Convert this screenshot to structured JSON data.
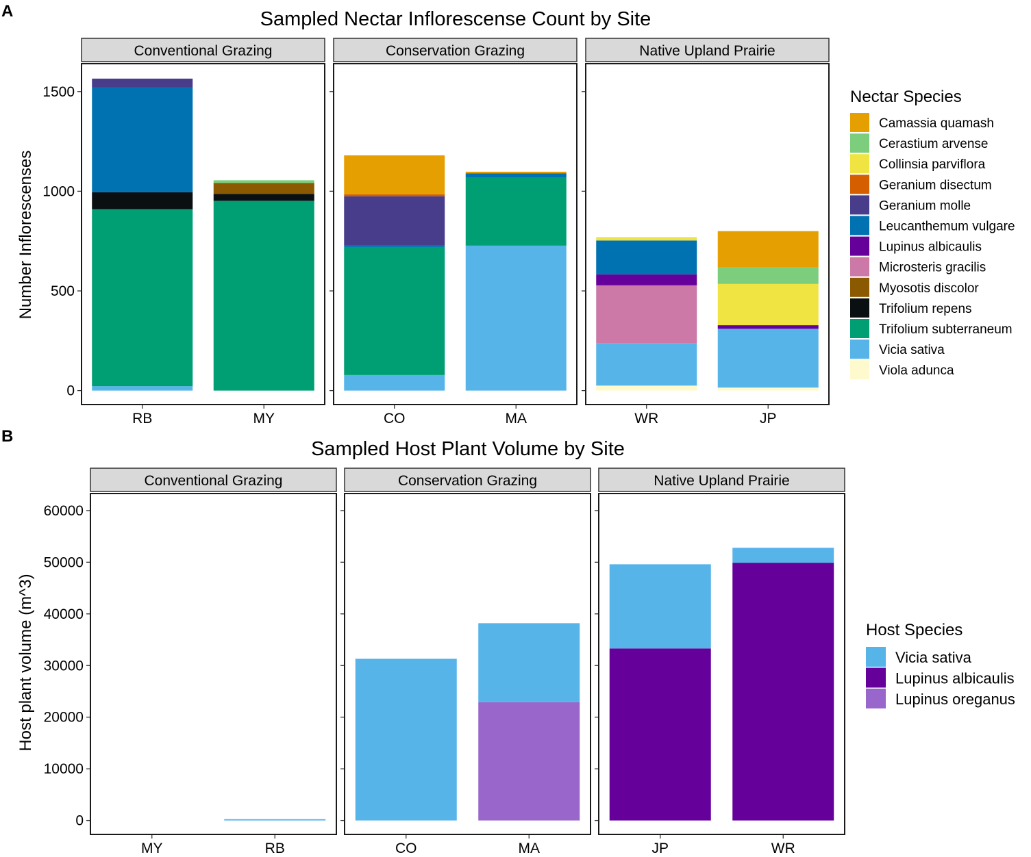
{
  "chart_data": [
    {
      "panel_label": "A",
      "type": "bar",
      "stacked": true,
      "title": "Sampled Nectar Inflorescense Count by Site",
      "xlabel": "",
      "ylabel": "Number Inflorescenses",
      "ylim": [
        -70,
        1640
      ],
      "yticks": [
        0,
        500,
        1000,
        1500
      ],
      "grid": false,
      "legend_position": "right",
      "legend_title": "Nectar Species",
      "species": [
        {
          "name": "Camassia quamash",
          "color": "#E69F00"
        },
        {
          "name": "Cerastium arvense",
          "color": "#7CCD7C"
        },
        {
          "name": "Collinsia parviflora",
          "color": "#F0E442"
        },
        {
          "name": "Geranium disectum",
          "color": "#D55E00"
        },
        {
          "name": "Geranium molle",
          "color": "#483D8B"
        },
        {
          "name": "Leucanthemum vulgare",
          "color": "#0072B2"
        },
        {
          "name": "Lupinus albicaulis",
          "color": "#66009A"
        },
        {
          "name": "Microsteris gracilis",
          "color": "#CC79A7"
        },
        {
          "name": "Myosotis discolor",
          "color": "#8B5A00"
        },
        {
          "name": "Trifolium repens",
          "color": "#0A0F12"
        },
        {
          "name": "Trifolium subterraneum",
          "color": "#009E73"
        },
        {
          "name": "Vicia sativa",
          "color": "#56B4E9"
        },
        {
          "name": "Viola adunca",
          "color": "#FFFACD"
        }
      ],
      "facets": [
        {
          "label": "Conventional Grazing",
          "sites": [
            {
              "site": "RB",
              "stack": [
                {
                  "species": "Vicia sativa",
                  "value": 22
                },
                {
                  "species": "Trifolium subterraneum",
                  "value": 888
                },
                {
                  "species": "Trifolium repens",
                  "value": 85
                },
                {
                  "species": "Leucanthemum vulgare",
                  "value": 525
                },
                {
                  "species": "Geranium molle",
                  "value": 45
                }
              ]
            },
            {
              "site": "MY",
              "stack": [
                {
                  "species": "Trifolium subterraneum",
                  "value": 952
                },
                {
                  "species": "Trifolium repens",
                  "value": 35
                },
                {
                  "species": "Myosotis discolor",
                  "value": 55
                },
                {
                  "species": "Cerastium arvense",
                  "value": 13
                }
              ]
            }
          ]
        },
        {
          "label": "Conservation Grazing",
          "sites": [
            {
              "site": "CO",
              "stack": [
                {
                  "species": "Vicia sativa",
                  "value": 78
                },
                {
                  "species": "Trifolium subterraneum",
                  "value": 642
                },
                {
                  "species": "Leucanthemum vulgare",
                  "value": 10
                },
                {
                  "species": "Geranium molle",
                  "value": 245
                },
                {
                  "species": "Geranium disectum",
                  "value": 10
                },
                {
                  "species": "Camassia quamash",
                  "value": 195
                }
              ]
            },
            {
              "site": "MA",
              "stack": [
                {
                  "species": "Vicia sativa",
                  "value": 727
                },
                {
                  "species": "Trifolium subterraneum",
                  "value": 343
                },
                {
                  "species": "Leucanthemum vulgare",
                  "value": 20
                },
                {
                  "species": "Camassia quamash",
                  "value": 8
                }
              ]
            }
          ]
        },
        {
          "label": "Native Upland Prairie",
          "sites": [
            {
              "site": "WR",
              "stack": [
                {
                  "species": "Viola adunca",
                  "value": 25
                },
                {
                  "species": "Vicia sativa",
                  "value": 213
                },
                {
                  "species": "Microsteris gracilis",
                  "value": 290
                },
                {
                  "species": "Lupinus albicaulis",
                  "value": 55
                },
                {
                  "species": "Leucanthemum vulgare",
                  "value": 170
                },
                {
                  "species": "Collinsia parviflora",
                  "value": 17
                }
              ]
            },
            {
              "site": "JP",
              "stack": [
                {
                  "species": "Viola adunca",
                  "value": 15
                },
                {
                  "species": "Vicia sativa",
                  "value": 295
                },
                {
                  "species": "Lupinus albicaulis",
                  "value": 18
                },
                {
                  "species": "Collinsia parviflora",
                  "value": 207
                },
                {
                  "species": "Cerastium arvense",
                  "value": 85
                },
                {
                  "species": "Camassia quamash",
                  "value": 180
                }
              ]
            }
          ]
        }
      ]
    },
    {
      "panel_label": "B",
      "type": "bar",
      "stacked": true,
      "title": "Sampled Host Plant Volume by Site",
      "xlabel": "",
      "ylabel": "Host plant volume (m^3)",
      "ylim": [
        -2700,
        63300
      ],
      "yticks": [
        0,
        10000,
        20000,
        30000,
        40000,
        50000,
        60000
      ],
      "grid": false,
      "legend_position": "right",
      "legend_title": "Host Species",
      "species": [
        {
          "name": "Vicia sativa",
          "color": "#56B4E9"
        },
        {
          "name": "Lupinus albicaulis",
          "color": "#66009A"
        },
        {
          "name": "Lupinus oreganus",
          "color": "#9966CC"
        }
      ],
      "facets": [
        {
          "label": "Conventional Grazing",
          "sites": [
            {
              "site": "MY",
              "stack": []
            },
            {
              "site": "RB",
              "stack": [
                {
                  "species": "Vicia sativa",
                  "value": 250
                }
              ]
            }
          ]
        },
        {
          "label": "Conservation Grazing",
          "sites": [
            {
              "site": "CO",
              "stack": [
                {
                  "species": "Vicia sativa",
                  "value": 31300
                }
              ]
            },
            {
              "site": "MA",
              "stack": [
                {
                  "species": "Lupinus oreganus",
                  "value": 22900
                },
                {
                  "species": "Vicia sativa",
                  "value": 15300
                }
              ]
            }
          ]
        },
        {
          "label": "Native Upland Prairie",
          "sites": [
            {
              "site": "JP",
              "stack": [
                {
                  "species": "Lupinus albicaulis",
                  "value": 33300
                },
                {
                  "species": "Vicia sativa",
                  "value": 16300
                }
              ]
            },
            {
              "site": "WR",
              "stack": [
                {
                  "species": "Lupinus albicaulis",
                  "value": 49900
                },
                {
                  "species": "Vicia sativa",
                  "value": 2900
                }
              ]
            }
          ]
        }
      ]
    }
  ]
}
